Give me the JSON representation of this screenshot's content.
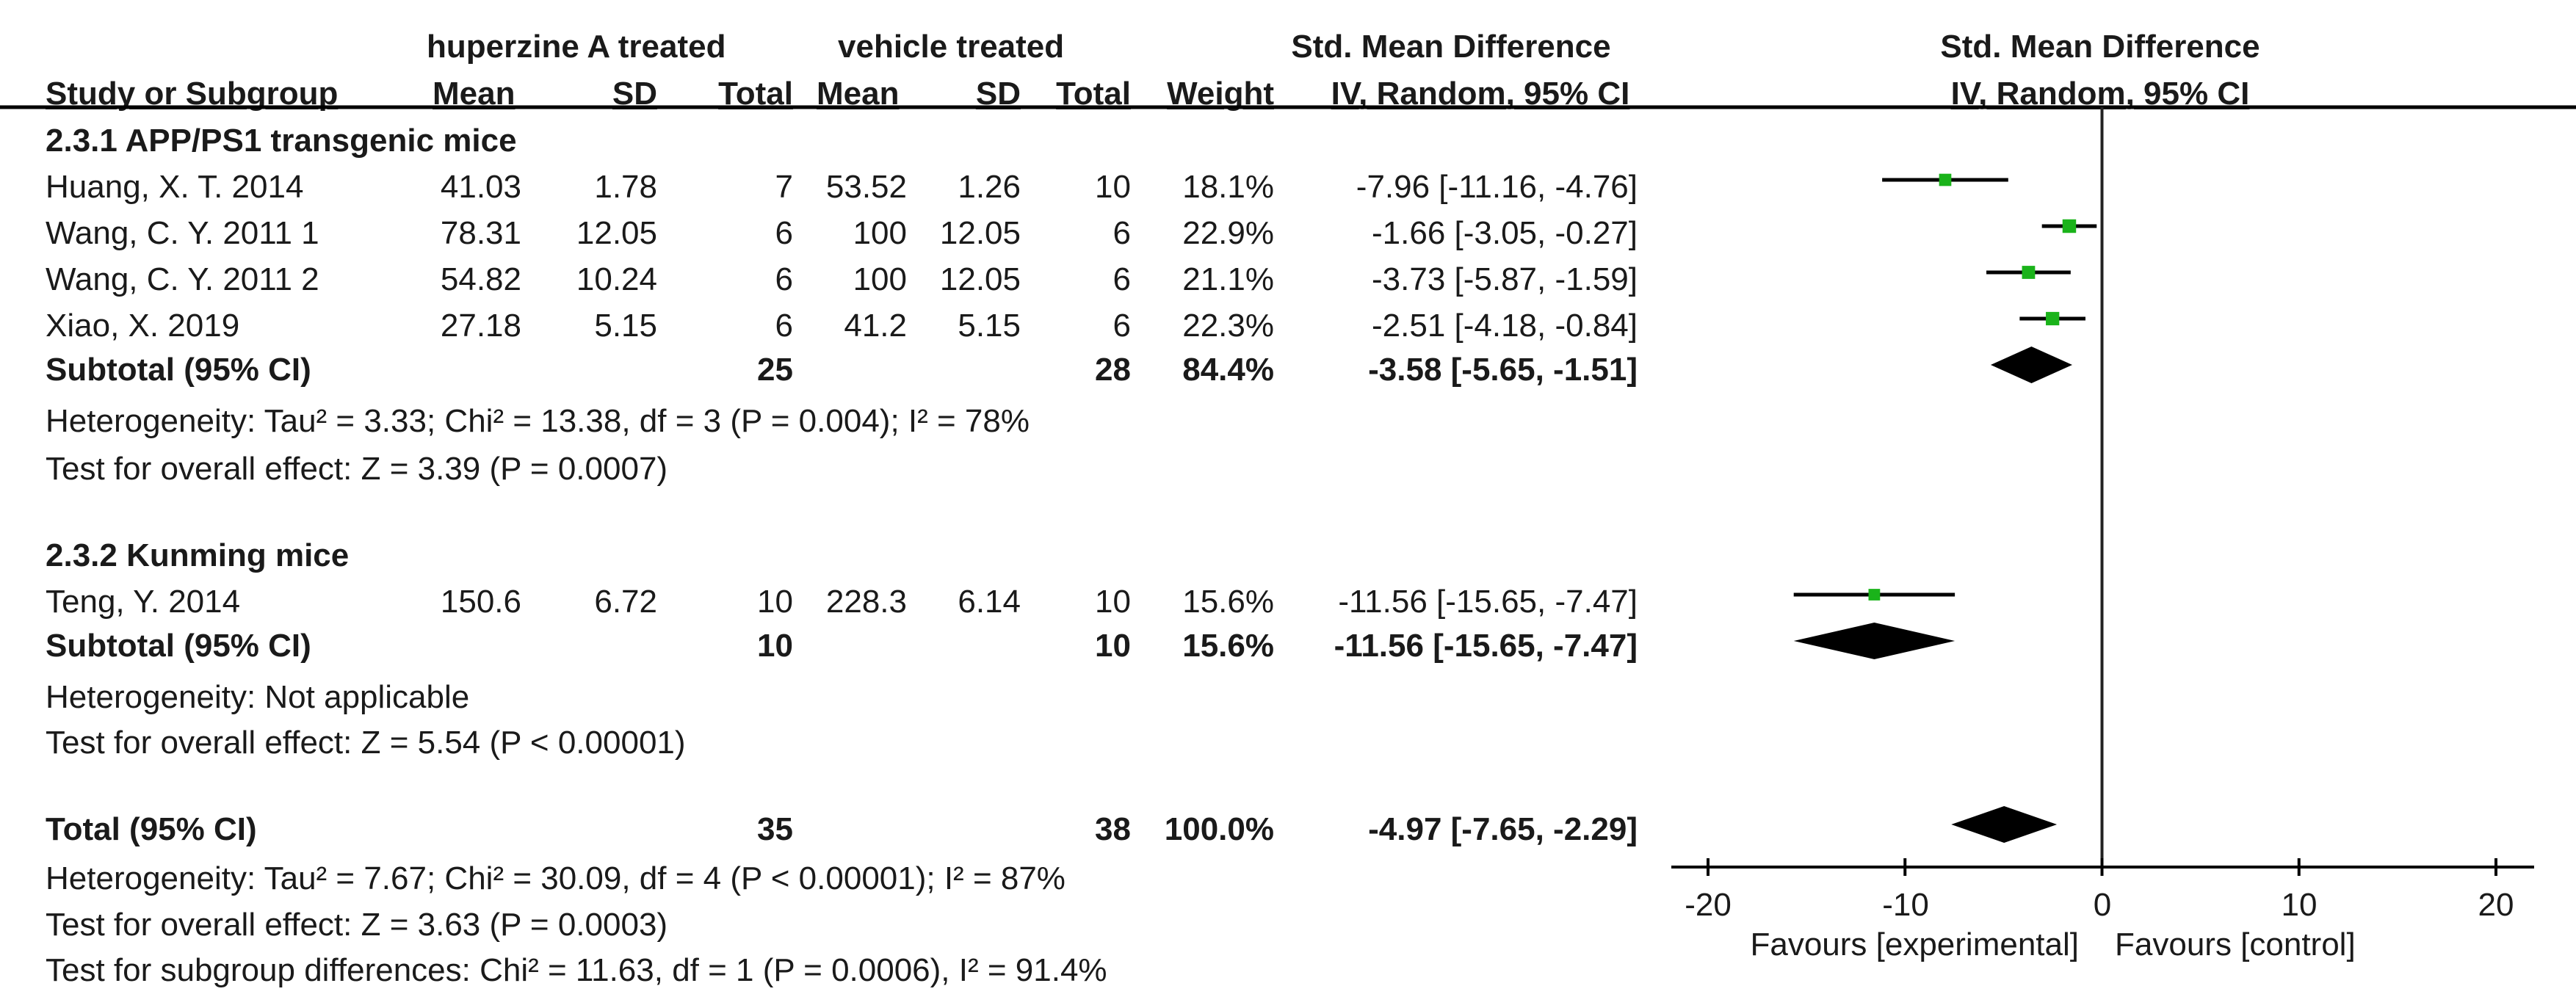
{
  "headers": {
    "treated_group": "huperzine A treated",
    "control_group": "vehicle treated",
    "effect_left_1": "Std. Mean Difference",
    "effect_left_2": "IV, Random, 95% CI",
    "effect_right_1": "Std. Mean Difference",
    "effect_right_2": "IV, Random, 95% CI",
    "study": "Study or Subgroup",
    "mean": "Mean",
    "sd": "SD",
    "total": "Total",
    "weight": "Weight"
  },
  "subgroups": [
    {
      "title": "2.3.1 APP/PS1 transgenic mice",
      "studies": [
        {
          "name": "Huang, X. T. 2014",
          "t_mean": "41.03",
          "t_sd": "1.78",
          "t_total": "7",
          "c_mean": "53.52",
          "c_sd": "1.26",
          "c_total": "10",
          "weight": "18.1%",
          "ci_text": "-7.96 [-11.16, -4.76]"
        },
        {
          "name": "Wang, C. Y. 2011 1",
          "t_mean": "78.31",
          "t_sd": "12.05",
          "t_total": "6",
          "c_mean": "100",
          "c_sd": "12.05",
          "c_total": "6",
          "weight": "22.9%",
          "ci_text": "-1.66 [-3.05, -0.27]"
        },
        {
          "name": "Wang, C. Y. 2011 2",
          "t_mean": "54.82",
          "t_sd": "10.24",
          "t_total": "6",
          "c_mean": "100",
          "c_sd": "12.05",
          "c_total": "6",
          "weight": "21.1%",
          "ci_text": "-3.73 [-5.87, -1.59]"
        },
        {
          "name": "Xiao, X. 2019",
          "t_mean": "27.18",
          "t_sd": "5.15",
          "t_total": "6",
          "c_mean": "41.2",
          "c_sd": "5.15",
          "c_total": "6",
          "weight": "22.3%",
          "ci_text": "-2.51 [-4.18, -0.84]"
        }
      ],
      "subtotal": {
        "label": "Subtotal (95% CI)",
        "t_total": "25",
        "c_total": "28",
        "weight": "84.4%",
        "ci_text": "-3.58 [-5.65, -1.51]"
      },
      "heterogeneity": "Heterogeneity: Tau² = 3.33; Chi² = 13.38, df = 3 (P = 0.004); I² = 78%",
      "overall": "Test for overall effect: Z = 3.39 (P = 0.0007)"
    },
    {
      "title": "2.3.2 Kunming mice",
      "studies": [
        {
          "name": "Teng, Y. 2014",
          "t_mean": "150.6",
          "t_sd": "6.72",
          "t_total": "10",
          "c_mean": "228.3",
          "c_sd": "6.14",
          "c_total": "10",
          "weight": "15.6%",
          "ci_text": "-11.56 [-15.65, -7.47]"
        }
      ],
      "subtotal": {
        "label": "Subtotal (95% CI)",
        "t_total": "10",
        "c_total": "10",
        "weight": "15.6%",
        "ci_text": "-11.56 [-15.65, -7.47]"
      },
      "heterogeneity": "Heterogeneity: Not applicable",
      "overall": "Test for overall effect: Z = 5.54 (P < 0.00001)"
    }
  ],
  "total": {
    "label": "Total (95% CI)",
    "t_total": "35",
    "c_total": "38",
    "weight": "100.0%",
    "ci_text": "-4.97 [-7.65, -2.29]",
    "heterogeneity": "Heterogeneity: Tau² = 7.67; Chi² = 30.09, df = 4 (P < 0.00001); I² = 87%",
    "overall": "Test for overall effect: Z = 3.63 (P = 0.0003)",
    "subgroup_diff": "Test for subgroup differences: Chi² = 11.63, df = 1 (P = 0.0006), I² = 91.4%"
  },
  "colors": {
    "marker": "#1ab31a",
    "line": "#000000",
    "text": "#1a1a1a"
  },
  "chart_data": {
    "type": "forest",
    "title": "Std. Mean Difference IV, Random, 95% CI",
    "xlim": [
      -20,
      20
    ],
    "xticks": [
      -20,
      -10,
      0,
      10,
      20
    ],
    "xtick_labels": [
      "-20",
      "-10",
      "0",
      "10",
      "20"
    ],
    "favours_left": "Favours [experimental]",
    "favours_right": "Favours [control]",
    "studies": [
      {
        "name": "Huang, X. T. 2014",
        "est": -7.96,
        "lo": -11.16,
        "hi": -4.76,
        "weight": 18.1
      },
      {
        "name": "Wang, C. Y. 2011 1",
        "est": -1.66,
        "lo": -3.05,
        "hi": -0.27,
        "weight": 22.9
      },
      {
        "name": "Wang, C. Y. 2011 2",
        "est": -3.73,
        "lo": -5.87,
        "hi": -1.59,
        "weight": 21.1
      },
      {
        "name": "Xiao, X. 2019",
        "est": -2.51,
        "lo": -4.18,
        "hi": -0.84,
        "weight": 22.3
      },
      {
        "name": "Teng, Y. 2014",
        "est": -11.56,
        "lo": -15.65,
        "hi": -7.47,
        "weight": 15.6
      }
    ],
    "diamonds": [
      {
        "name": "Subtotal 2.3.1",
        "est": -3.58,
        "lo": -5.65,
        "hi": -1.51
      },
      {
        "name": "Subtotal 2.3.2",
        "est": -11.56,
        "lo": -15.65,
        "hi": -7.47
      },
      {
        "name": "Total",
        "est": -4.97,
        "lo": -7.65,
        "hi": -2.29
      }
    ]
  }
}
